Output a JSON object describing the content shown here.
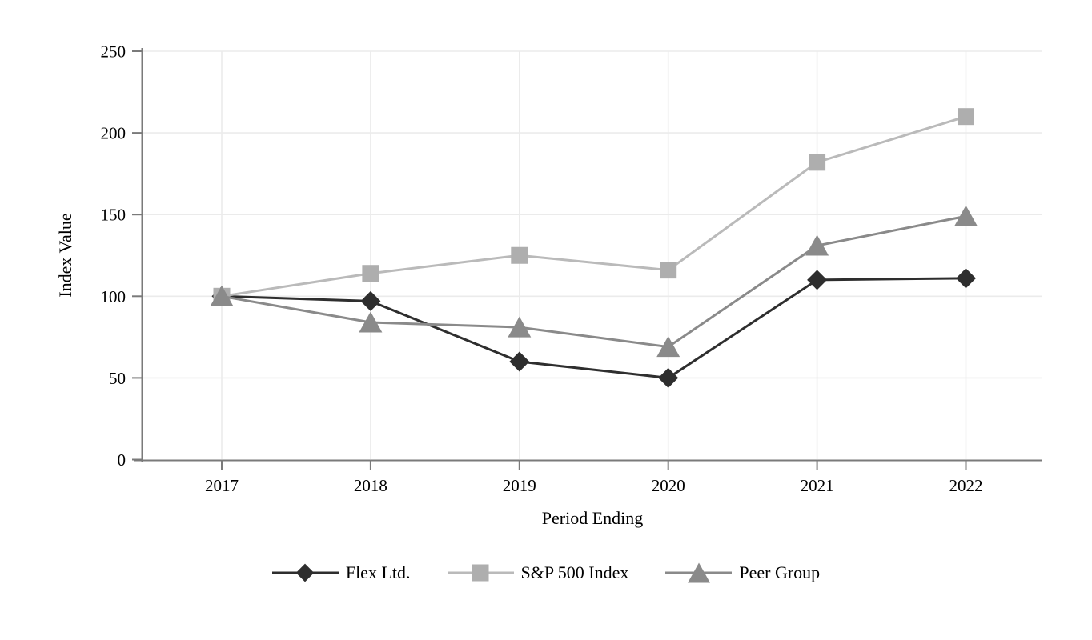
{
  "chart_data": {
    "type": "line",
    "title": "",
    "xlabel": "Period Ending",
    "ylabel": "Index Value",
    "categories": [
      "2017",
      "2018",
      "2019",
      "2020",
      "2021",
      "2022"
    ],
    "yticks": [
      0,
      50,
      100,
      150,
      200,
      250
    ],
    "ylim": [
      0,
      250
    ],
    "grid": true,
    "legend_position": "bottom-center",
    "colors": {
      "background": "#ffffff",
      "gridline": "#ebebeb",
      "axis": "#7a7a7a",
      "text": "#000000"
    },
    "series": [
      {
        "name": "Flex Ltd.",
        "marker": "diamond",
        "color": "#2e2e2e",
        "line_color": "#2e2e2e",
        "values": [
          100,
          97,
          60,
          50,
          110,
          111
        ]
      },
      {
        "name": "S&P 500 Index",
        "marker": "square",
        "color": "#aeaeae",
        "line_color": "#bababa",
        "values": [
          100,
          114,
          125,
          116,
          182,
          210
        ]
      },
      {
        "name": "Peer Group",
        "marker": "triangle",
        "color": "#8a8a8a",
        "line_color": "#8a8a8a",
        "values": [
          100,
          84,
          81,
          69,
          131,
          149
        ]
      }
    ]
  }
}
